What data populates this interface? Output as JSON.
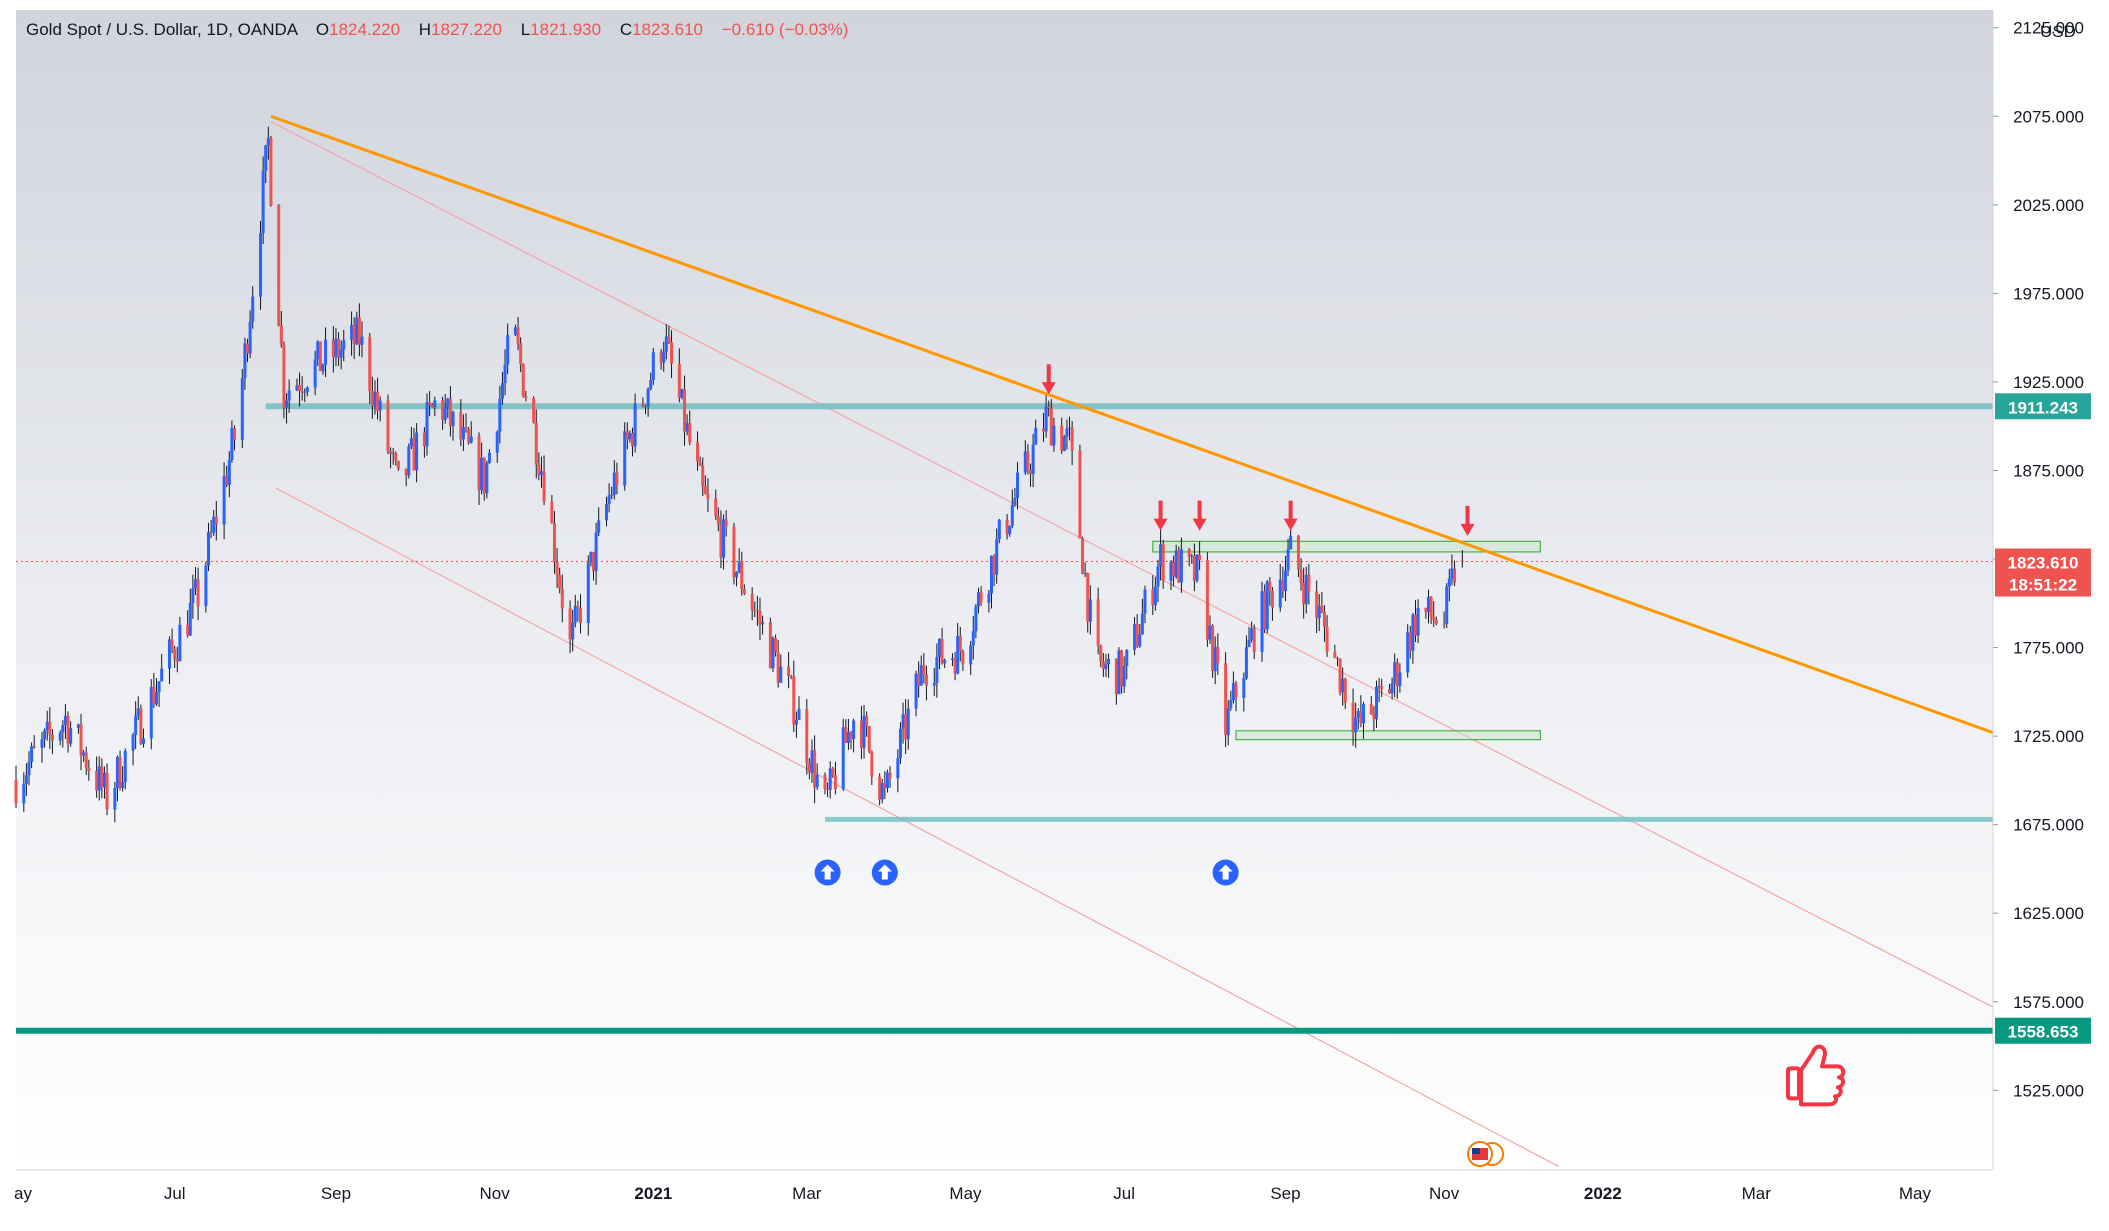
{
  "header": {
    "symbol": "Gold Spot / U.S. Dollar, 1D, OANDA",
    "open_label": "O",
    "open": "1824.220",
    "high_label": "H",
    "high": "1827.220",
    "low_label": "L",
    "low": "1821.930",
    "close_label": "C",
    "close": "1823.610",
    "change": "−0.610 (−0.03%)"
  },
  "price_axis": {
    "currency": "USD",
    "ticks": [
      "2125.000",
      "2075.000",
      "2025.000",
      "1975.000",
      "1925.000",
      "1875.000",
      "1825.000",
      "1775.000",
      "1725.000",
      "1675.000",
      "1625.000",
      "1575.000",
      "1525.000"
    ]
  },
  "time_axis": {
    "labels": [
      "ay",
      "Jul",
      "Sep",
      "Nov",
      "2021",
      "Mar",
      "May",
      "Jul",
      "Sep",
      "Nov",
      "2022",
      "Mar",
      "May"
    ]
  },
  "tags": {
    "resistance": "1911.243",
    "last_price": "1823.610",
    "countdown": "18:51:22",
    "support": "1558.653"
  },
  "colors": {
    "bull": "#2962ff",
    "bear": "#ef5350",
    "trendline": "#ff9800",
    "resistance_line": "#79bfc4",
    "support_line": "#089981",
    "zone_fill": "#c8e6c9",
    "zone_border": "#4caf50",
    "arrow_up": "#2962ff",
    "arrow_down": "#f23645",
    "channel": "#f4a6a6"
  },
  "icons": {
    "down_arrows": "arrow-down-icon",
    "up_arrows": "arrow-up-circle-icon",
    "thumbs_up": "thumbs-up-icon",
    "flag": "us-flag-icon"
  },
  "chart_data": {
    "type": "candlestick",
    "title": "Gold Spot / U.S. Dollar, 1D, OANDA",
    "ohlc_last": {
      "open": 1824.22,
      "high": 1827.22,
      "low": 1821.93,
      "close": 1823.61
    },
    "ylim": [
      1480,
      2135
    ],
    "x_range": [
      "2020-05-01",
      "2022-05-31"
    ],
    "close_path": [
      [
        "2020-05-01",
        1700
      ],
      [
        "2020-05-20",
        1735
      ],
      [
        "2020-06-05",
        1690
      ],
      [
        "2020-06-20",
        1740
      ],
      [
        "2020-07-10",
        1805
      ],
      [
        "2020-07-25",
        1900
      ],
      [
        "2020-08-06",
        2060
      ],
      [
        "2020-08-12",
        1920
      ],
      [
        "2020-08-25",
        1935
      ],
      [
        "2020-09-10",
        1950
      ],
      [
        "2020-09-25",
        1865
      ],
      [
        "2020-10-10",
        1915
      ],
      [
        "2020-10-28",
        1870
      ],
      [
        "2020-11-08",
        1955
      ],
      [
        "2020-11-20",
        1870
      ],
      [
        "2020-11-30",
        1775
      ],
      [
        "2020-12-15",
        1860
      ],
      [
        "2021-01-05",
        1950
      ],
      [
        "2021-01-20",
        1860
      ],
      [
        "2021-02-05",
        1810
      ],
      [
        "2021-02-25",
        1740
      ],
      [
        "2021-03-08",
        1685
      ],
      [
        "2021-03-20",
        1740
      ],
      [
        "2021-03-31",
        1690
      ],
      [
        "2021-04-15",
        1765
      ],
      [
        "2021-04-30",
        1775
      ],
      [
        "2021-05-15",
        1840
      ],
      [
        "2021-06-01",
        1905
      ],
      [
        "2021-06-10",
        1890
      ],
      [
        "2021-06-20",
        1765
      ],
      [
        "2021-07-01",
        1760
      ],
      [
        "2021-07-15",
        1825
      ],
      [
        "2021-07-30",
        1815
      ],
      [
        "2021-08-09",
        1730
      ],
      [
        "2021-08-20",
        1785
      ],
      [
        "2021-09-03",
        1828
      ],
      [
        "2021-09-15",
        1790
      ],
      [
        "2021-09-29",
        1730
      ],
      [
        "2021-10-12",
        1755
      ],
      [
        "2021-10-22",
        1795
      ],
      [
        "2021-11-01",
        1790
      ],
      [
        "2021-11-05",
        1818
      ],
      [
        "2021-11-08",
        1823.61
      ]
    ],
    "levels": {
      "resistance": 1911.243,
      "support": 1558.653,
      "lower_support": 1678,
      "last_price": 1823.61
    },
    "zones": [
      {
        "from": "2021-07-12",
        "to": "2021-12-08",
        "low": 1829,
        "high": 1835
      },
      {
        "from": "2021-08-13",
        "to": "2021-12-08",
        "low": 1723,
        "high": 1728
      }
    ],
    "trendline": {
      "points": [
        [
          "2020-08-07",
          2075
        ],
        [
          "2022-05-31",
          1727
        ]
      ]
    },
    "channel": [
      {
        "points": [
          [
            "2020-08-07",
            2072
          ],
          [
            "2022-05-31",
            1572
          ]
        ]
      },
      {
        "points": [
          [
            "2020-08-09",
            1865
          ],
          [
            "2021-12-15",
            1482
          ]
        ]
      }
    ],
    "resistance_touch_arrows": [
      "2021-06-02",
      "2021-07-15",
      "2021-07-30",
      "2021-09-03",
      "2021-11-10"
    ],
    "support_touch_arrows": [
      "2021-03-09",
      "2021-03-31",
      "2021-08-09"
    ]
  }
}
